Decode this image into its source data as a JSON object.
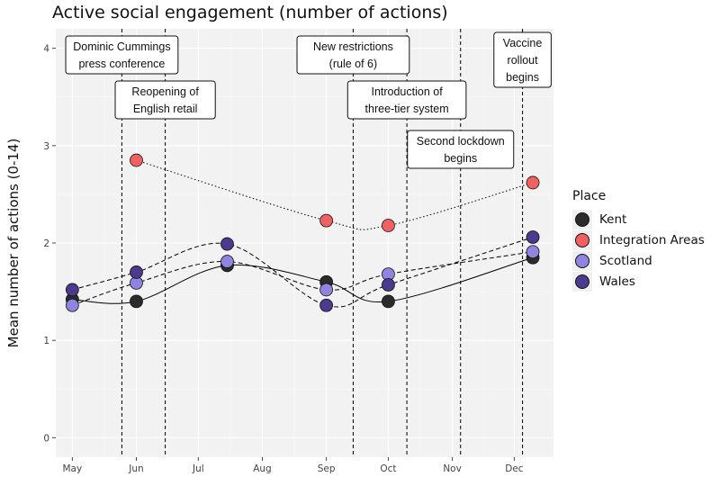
{
  "chart_data": {
    "type": "line",
    "title": "Active social engagement (number of actions)",
    "xlabel": "",
    "ylabel": "Mean number of actions (0-14)",
    "ylim": [
      -0.2,
      4.2
    ],
    "yticks": [
      0,
      1,
      2,
      3,
      4
    ],
    "x_tick_labels": [
      "May",
      "Jun",
      "Jul",
      "Aug",
      "Sep",
      "Oct",
      "Nov",
      "Dec"
    ],
    "x_tick_dates": [
      "2020-05-01",
      "2020-06-01",
      "2020-07-01",
      "2020-08-01",
      "2020-09-01",
      "2020-10-01",
      "2020-11-01",
      "2020-12-01"
    ],
    "xlim": [
      "2020-04-23",
      "2020-12-20"
    ],
    "grid": true,
    "legend_title": "Place",
    "legend_position": "right",
    "series": [
      {
        "name": "Kent",
        "color": "#2b2b2b",
        "linestyle": "solid",
        "points": [
          [
            "2020-05-01",
            1.42
          ],
          [
            "2020-06-01",
            1.4
          ],
          [
            "2020-07-15",
            1.77
          ],
          [
            "2020-09-01",
            1.6
          ],
          [
            "2020-10-01",
            1.4
          ],
          [
            "2020-12-10",
            1.85
          ]
        ]
      },
      {
        "name": "Integration Areas",
        "color": "#f06161",
        "linestyle": "dotted",
        "points": [
          [
            "2020-06-01",
            2.85
          ],
          [
            "2020-09-01",
            2.23
          ],
          [
            "2020-10-01",
            2.18
          ],
          [
            "2020-12-10",
            2.62
          ]
        ]
      },
      {
        "name": "Scotland",
        "color": "#8f84e0",
        "linestyle": "dashed",
        "points": [
          [
            "2020-05-01",
            1.36
          ],
          [
            "2020-06-01",
            1.59
          ],
          [
            "2020-07-15",
            1.81
          ],
          [
            "2020-09-01",
            1.52
          ],
          [
            "2020-10-01",
            1.68
          ],
          [
            "2020-12-10",
            1.91
          ]
        ]
      },
      {
        "name": "Wales",
        "color": "#4b3a8e",
        "linestyle": "dashed",
        "points": [
          [
            "2020-05-01",
            1.52
          ],
          [
            "2020-06-01",
            1.7
          ],
          [
            "2020-07-15",
            1.99
          ],
          [
            "2020-09-01",
            1.36
          ],
          [
            "2020-10-01",
            1.57
          ],
          [
            "2020-12-10",
            2.06
          ]
        ]
      }
    ],
    "events": [
      {
        "date": "2020-05-25",
        "label": "Dominic Cummings\npress conference"
      },
      {
        "date": "2020-06-15",
        "label": "Reopening of\nEnglish retail"
      },
      {
        "date": "2020-09-14",
        "label": "New restrictions\n(rule of 6)"
      },
      {
        "date": "2020-10-10",
        "label": "Introduction of\nthree-tier system"
      },
      {
        "date": "2020-11-05",
        "label": "Second lockdown\nbegins"
      },
      {
        "date": "2020-12-05",
        "label": "Vaccine\nrollout\nbegins"
      }
    ]
  }
}
